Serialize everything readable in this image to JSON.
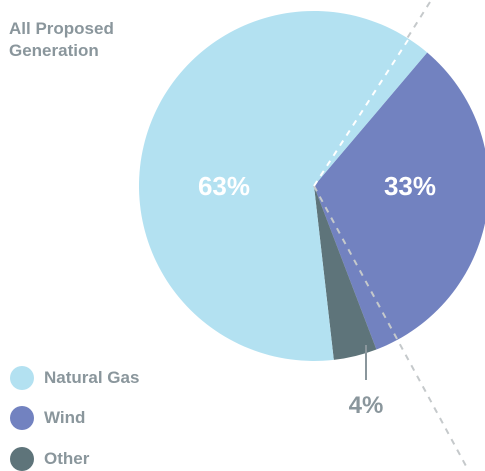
{
  "chart_data": {
    "type": "pie",
    "title_lines": [
      "All Proposed",
      "Generation"
    ],
    "slices": [
      {
        "label": "Natural Gas",
        "value": 63,
        "display": "63%",
        "color": "#b3e1f1"
      },
      {
        "label": "Wind",
        "value": 33,
        "display": "33%",
        "color": "#7282c0"
      },
      {
        "label": "Other",
        "value": 4,
        "display": "4%",
        "color": "#5e747a"
      }
    ]
  }
}
